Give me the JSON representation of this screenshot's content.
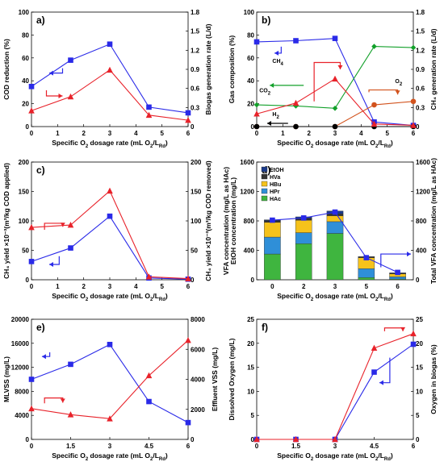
{
  "colors": {
    "blue": "#2a2ae8",
    "red": "#e8222a",
    "green": "#12a02a",
    "orange": "#d2521c",
    "black": "#000000",
    "hac": "#3fb53f",
    "hpr": "#2f8fd8",
    "hbu": "#f5c21b",
    "hva": "#333333",
    "etoh": "#1a3a8a"
  },
  "chart_data": [
    {
      "panel": "a)",
      "type": "line",
      "xlabel": "Specific O₂ dosage rate (mL O₂/L_Rd)",
      "ylabel": "COD reduction (%)",
      "ylabel_right": "Biogas generation rate (L/d)",
      "xlim": [
        0,
        6
      ],
      "ylim": [
        0,
        100
      ],
      "ylim_right": [
        0,
        1.8
      ],
      "xticks": [
        "0",
        "1",
        "2",
        "3",
        "4",
        "5",
        "6"
      ],
      "yticks": [
        "0",
        "20",
        "40",
        "60",
        "80",
        "100"
      ],
      "yticks_right": [
        "0",
        "0.3",
        "0.6",
        "0.9",
        "1.2",
        "1.5",
        "1.8"
      ],
      "series": [
        {
          "axis": "left",
          "color": "blue",
          "marker": "square",
          "x": [
            0,
            1.5,
            3,
            4.5,
            6
          ],
          "y": [
            35,
            58,
            72,
            17,
            12
          ]
        },
        {
          "axis": "right",
          "color": "red",
          "marker": "triangle",
          "x": [
            0,
            1.5,
            3,
            4.5,
            6
          ],
          "y": [
            0.25,
            0.47,
            0.89,
            0.18,
            0.1
          ]
        }
      ]
    },
    {
      "panel": "b)",
      "type": "line",
      "xlabel": "Specific O₂ dosage rate (mL O₂/L_Rd)",
      "ylabel": "Gas composition (%)",
      "ylabel_right": "CH₄ generation rate (L/d)",
      "xlim": [
        0,
        6
      ],
      "ylim": [
        0,
        100
      ],
      "ylim_right": [
        0,
        1.8
      ],
      "xticks": [
        "0",
        "1",
        "2",
        "3",
        "4",
        "5",
        "6"
      ],
      "yticks": [
        "0",
        "20",
        "40",
        "60",
        "80",
        "100"
      ],
      "yticks_right": [
        "0",
        "0.3",
        "0.6",
        "0.9",
        "1.2",
        "1.5",
        "1.8"
      ],
      "series": [
        {
          "name": "CH₄",
          "axis": "left",
          "color": "blue",
          "marker": "square",
          "x": [
            0,
            1.5,
            3,
            4.5,
            6
          ],
          "y": [
            74,
            75,
            77,
            4,
            1
          ]
        },
        {
          "name": "CO₂",
          "axis": "left",
          "color": "green",
          "marker": "diamond",
          "x": [
            0,
            1.5,
            3,
            4.5,
            6
          ],
          "y": [
            19,
            18,
            16,
            70,
            69
          ]
        },
        {
          "name": "O₂",
          "axis": "left",
          "color": "orange",
          "marker": "circle",
          "x": [
            0,
            1.5,
            3,
            4.5,
            6
          ],
          "y": [
            0,
            0,
            0,
            19,
            22
          ]
        },
        {
          "name": "H₂",
          "axis": "left",
          "color": "black",
          "marker": "circle",
          "x": [
            0,
            1.5,
            3,
            4.5,
            6
          ],
          "y": [
            0,
            0,
            0,
            0,
            0
          ]
        },
        {
          "axis": "right",
          "color": "red",
          "marker": "triangle",
          "x": [
            0,
            1.5,
            3,
            4.5,
            6
          ],
          "y": [
            0.2,
            0.37,
            0.75,
            0.04,
            0.02
          ]
        }
      ]
    },
    {
      "panel": "c)",
      "type": "line",
      "xlabel": "Specific O₂ dosage rate (mL O₂/L_Rd)",
      "ylabel": "CH₄ yield ×10⁻³(m³/kg COD applied)",
      "ylabel_right": "CH₄ yield ×10⁻³(m³/kg COD removed)",
      "xlim": [
        0,
        6
      ],
      "ylim": [
        0,
        200
      ],
      "ylim_right": [
        0,
        200
      ],
      "xticks": [
        "0",
        "1",
        "2",
        "3",
        "4",
        "5",
        "6"
      ],
      "yticks": [
        "0",
        "50",
        "100",
        "150",
        "200"
      ],
      "yticks_right": [
        "0",
        "50",
        "100",
        "150",
        "200"
      ],
      "series": [
        {
          "axis": "left",
          "color": "blue",
          "marker": "square",
          "x": [
            0,
            1.5,
            3,
            4.5,
            6
          ],
          "y": [
            31,
            54,
            108,
            3,
            1
          ]
        },
        {
          "axis": "right",
          "color": "red",
          "marker": "triangle",
          "x": [
            0,
            1.5,
            3,
            4.5,
            6
          ],
          "y": [
            89,
            93,
            151,
            5,
            2
          ]
        }
      ]
    },
    {
      "panel": "d)",
      "type": "bar",
      "xlabel": "Specific O₂ dosage rate (mL O₂/L_Rd)",
      "ylabel": "VFA concentration (mg/L as HAc)",
      "ylabel2": "EtOH concentration (mg/L)",
      "ylabel_right": "Total VFA concentration (mg/L as HAc)",
      "ylim": [
        0,
        1600
      ],
      "ylim_right": [
        0,
        1600
      ],
      "categories": [
        "0",
        "2",
        "3",
        "5",
        "6"
      ],
      "yticks": [
        "0",
        "400",
        "800",
        "1200",
        "1600"
      ],
      "yticks_right": [
        "0",
        "400",
        "800",
        "1200",
        "1600"
      ],
      "legend": [
        "EtOH",
        "HVa",
        "HBu",
        "HPr",
        "HAc"
      ],
      "stacks": [
        {
          "name": "HAc",
          "color": "hac",
          "values": [
            350,
            490,
            630,
            30,
            10
          ]
        },
        {
          "name": "HPr",
          "color": "hpr",
          "values": [
            230,
            150,
            160,
            120,
            30
          ]
        },
        {
          "name": "HBu",
          "color": "hbu",
          "values": [
            200,
            170,
            80,
            150,
            40
          ]
        },
        {
          "name": "HVa",
          "color": "hva",
          "values": [
            25,
            25,
            25,
            10,
            8
          ]
        },
        {
          "name": "EtOH",
          "color": "etoh",
          "values": [
            10,
            20,
            40,
            5,
            6
          ]
        }
      ],
      "total_line": {
        "color": "blue",
        "marker": "square",
        "values": [
          810,
          840,
          920,
          300,
          100
        ]
      }
    },
    {
      "panel": "e)",
      "type": "line",
      "xlabel": "Specific O₂ dosage rate (mL O₂/L_Rd)",
      "ylabel": "MLVSS (mg/L)",
      "ylabel_right": "Effluent VSS (mg/L)",
      "xlim": [
        0,
        6
      ],
      "ylim": [
        0,
        20000
      ],
      "ylim_right": [
        0,
        8000
      ],
      "xticks": [
        "0",
        "1.5",
        "3",
        "4.5",
        "6"
      ],
      "yticks": [
        "0",
        "4000",
        "8000",
        "12000",
        "16000",
        "20000"
      ],
      "yticks_right": [
        "0",
        "2000",
        "4000",
        "6000",
        "8000"
      ],
      "series": [
        {
          "axis": "left",
          "color": "blue",
          "marker": "square",
          "x": [
            0,
            1.5,
            3,
            4.5,
            6
          ],
          "y": [
            10000,
            12500,
            15800,
            6300,
            2800
          ]
        },
        {
          "axis": "right",
          "color": "red",
          "marker": "triangle",
          "x": [
            0,
            1.5,
            3,
            4.5,
            6
          ],
          "y": [
            2050,
            1650,
            1380,
            4250,
            6600
          ]
        }
      ]
    },
    {
      "panel": "f)",
      "type": "line",
      "xlabel": "Specific O₂ dosage rate (mL O₂/L_Rd)",
      "ylabel": "Dissolved Oxygen (mg/L)",
      "ylabel_right": "Oxygen in biogas (%)",
      "xlim": [
        0,
        6
      ],
      "ylim": [
        0,
        25
      ],
      "ylim_right": [
        0,
        25
      ],
      "xticks": [
        "0",
        "1.5",
        "3",
        "4.5",
        "6"
      ],
      "yticks": [
        "0",
        "5",
        "10",
        "15",
        "20",
        "25"
      ],
      "yticks_right": [
        "0",
        "5",
        "10",
        "15",
        "20",
        "25"
      ],
      "series": [
        {
          "axis": "left",
          "color": "blue",
          "marker": "square",
          "x": [
            0,
            1.5,
            3,
            4.5,
            6
          ],
          "y": [
            0,
            0,
            0,
            14,
            19.8
          ]
        },
        {
          "axis": "right",
          "color": "red",
          "marker": "triangle",
          "x": [
            0,
            1.5,
            3,
            4.5,
            6
          ],
          "y": [
            0,
            0,
            0,
            19,
            22
          ]
        }
      ]
    }
  ]
}
